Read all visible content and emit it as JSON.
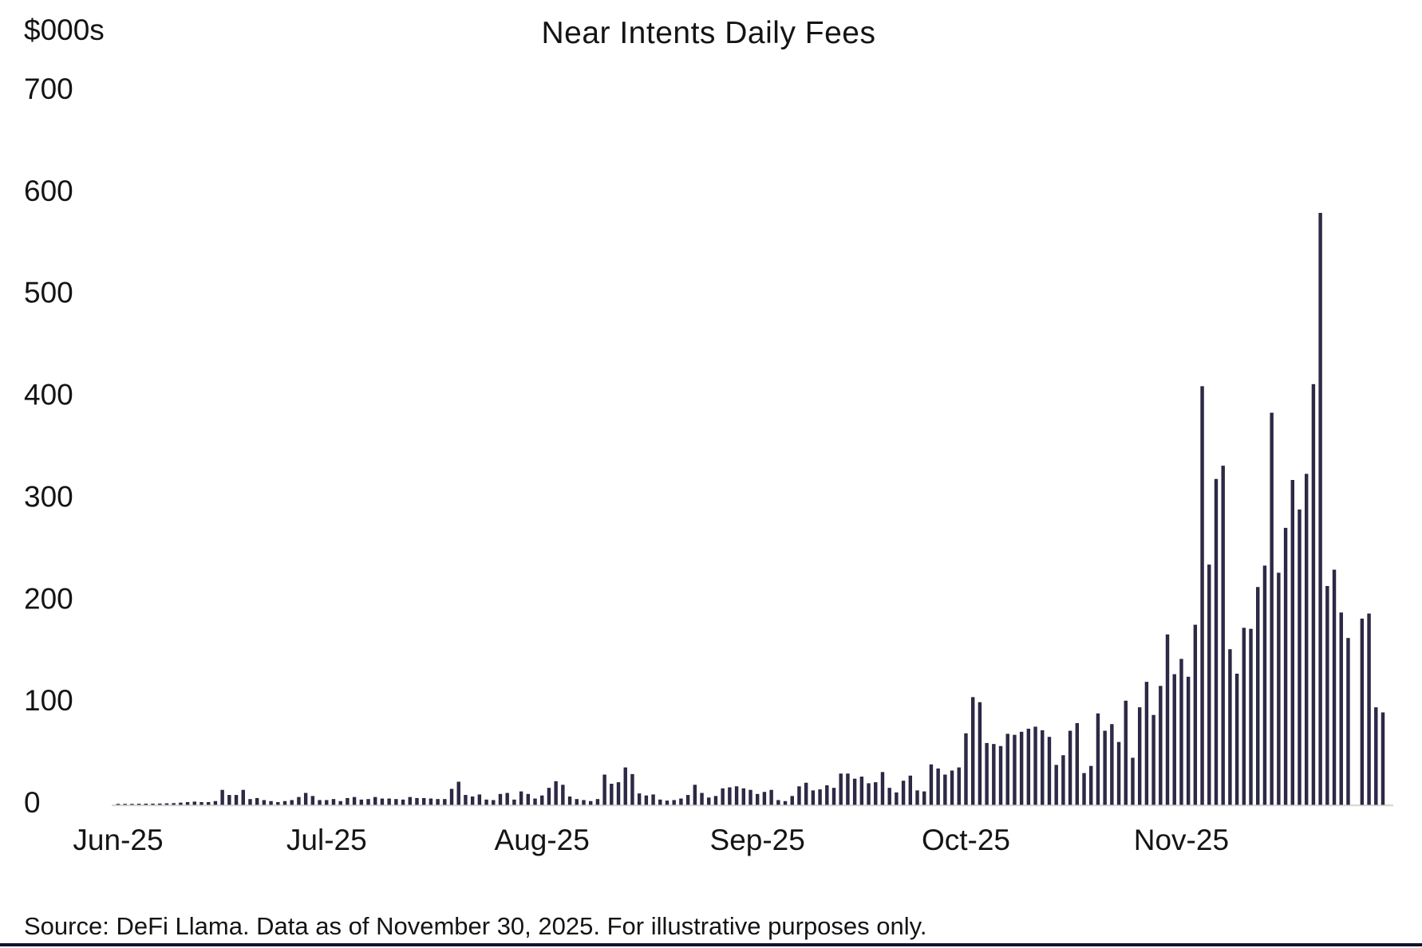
{
  "header": {
    "title": "Near Intents Daily Fees",
    "unit_label": "$000s"
  },
  "footer": {
    "source_note": "Source: DeFi Llama. Data as of November 30, 2025. For illustrative purposes only."
  },
  "colors": {
    "bar": "#2f2a4a",
    "bar_edge": "#262138",
    "axis_line": "#d9d9d9",
    "text": "#141414",
    "bottom_rule": "#13132a",
    "background": "#ffffff"
  },
  "chart_data": {
    "type": "bar",
    "title": "Near Intents Daily Fees",
    "ylabel": "$000s",
    "xlabel": "",
    "ylim": [
      0,
      700
    ],
    "y_ticks": [
      0,
      100,
      200,
      300,
      400,
      500,
      600,
      700
    ],
    "grid": false,
    "legend": "none",
    "x_start_date": "2025-06-01",
    "x_end_date": "2025-11-30",
    "x_tick_labels": [
      "Jun-25",
      "Jul-25",
      "Aug-25",
      "Sep-25",
      "Oct-25",
      "Nov-25"
    ],
    "month_day_counts": [
      30,
      31,
      31,
      30,
      31,
      30
    ],
    "series": [
      {
        "name": "Near Intents daily fees ($000s)",
        "values": [
          0.3,
          0.3,
          0.3,
          0.4,
          0.5,
          0.5,
          0.6,
          0.8,
          1,
          1.5,
          2,
          2.5,
          2,
          2,
          3,
          14,
          9,
          9,
          14,
          5,
          6,
          4,
          3,
          2,
          3,
          4,
          7,
          11,
          8,
          4,
          4,
          5,
          3,
          6,
          7,
          4.5,
          5,
          7,
          5.5,
          5.5,
          5,
          4.5,
          7,
          6,
          6,
          5.5,
          5,
          5,
          15,
          22,
          9,
          7.5,
          9.5,
          4.5,
          4,
          10,
          11,
          4.5,
          12.5,
          10,
          5.5,
          8.5,
          16,
          22.5,
          19,
          7.5,
          5,
          4,
          3,
          5,
          29,
          20,
          21.5,
          36,
          29.5,
          10.5,
          8.5,
          9.5,
          4.5,
          3.5,
          4,
          5.5,
          9,
          19,
          11,
          6.5,
          8,
          15.5,
          16.5,
          17.5,
          15.5,
          14,
          10,
          12,
          14,
          4,
          3,
          8,
          17.5,
          21,
          13.5,
          14.5,
          18.5,
          16,
          30,
          30,
          25,
          27,
          20.5,
          21.5,
          31.5,
          16,
          11.5,
          23,
          28,
          13.5,
          12.5,
          39,
          35,
          29,
          33,
          36,
          69.5,
          105,
          100,
          60,
          59,
          57,
          69,
          68,
          71,
          74,
          76,
          72.5,
          66,
          38.5,
          48,
          72,
          79.5,
          30.5,
          37.5,
          89,
          72,
          78.5,
          61,
          101.5,
          45.5,
          95,
          120,
          87.5,
          116,
          166.5,
          127.5,
          142.5,
          125,
          176,
          410,
          235,
          319,
          332,
          152,
          128,
          173,
          172,
          213,
          234,
          384,
          227,
          271,
          318,
          289,
          324,
          412,
          580,
          214,
          230,
          188,
          163,
          0,
          182,
          187,
          95,
          90
        ]
      }
    ]
  }
}
